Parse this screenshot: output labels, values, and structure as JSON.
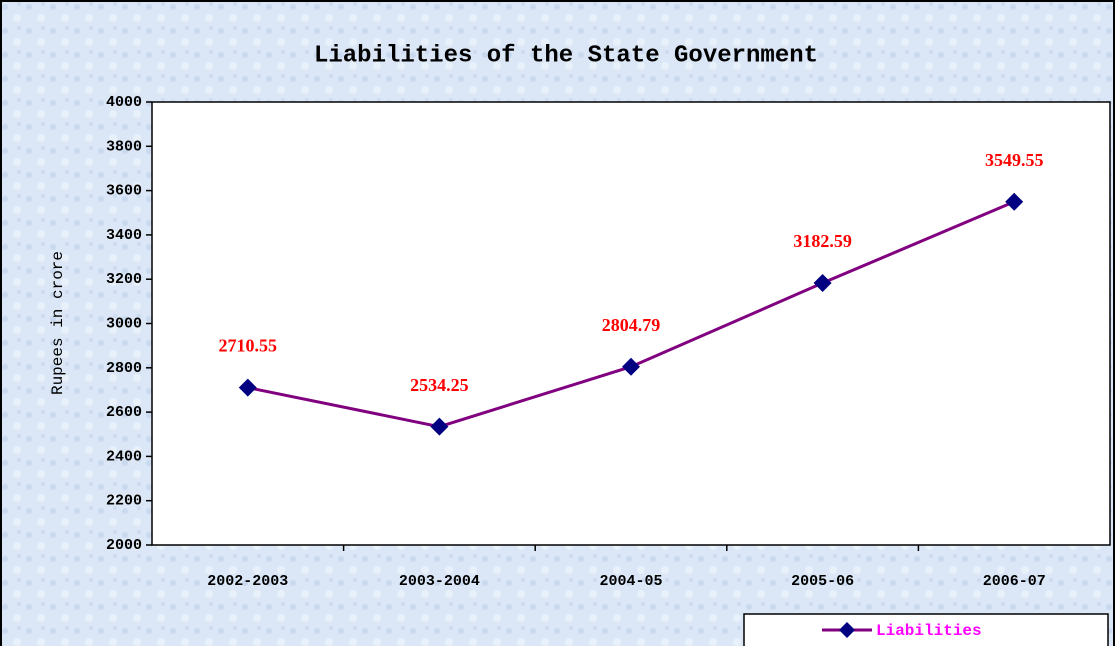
{
  "chart_data": {
    "type": "line",
    "title": "Liabilities of the State Government",
    "y_label": "Rupees in crore",
    "categories": [
      "2002-2003",
      "2003-2004",
      "2004-05",
      "2005-06",
      "2006-07"
    ],
    "series": [
      {
        "name": "Liabilities",
        "color": "#800080",
        "marker_color": "#000080",
        "legend_color": "#ff00ff",
        "values": [
          2710.55,
          2534.25,
          2804.79,
          3182.59,
          3549.55
        ]
      }
    ],
    "label_color": "#ff0000",
    "ylim": [
      2000,
      4000
    ],
    "yticks": [
      2000,
      2200,
      2400,
      2600,
      2800,
      3000,
      3200,
      3400,
      3600,
      3800,
      4000
    ],
    "legend": "bottom-right"
  }
}
